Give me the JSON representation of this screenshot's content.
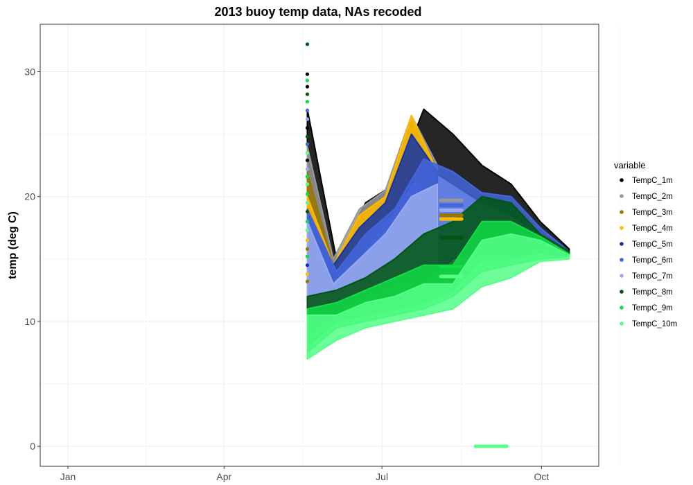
{
  "chart_data": {
    "type": "scatter",
    "title": "2013 buoy temp data, NAs recoded",
    "xlabel": "",
    "ylabel": "temp (deg C)",
    "x_tick_labels": [
      "Jan",
      "Apr",
      "Jul",
      "Oct"
    ],
    "x_ticks": [
      "2013-01-01",
      "2013-04-01",
      "2013-07-01",
      "2013-10-01"
    ],
    "xlim": [
      "2012-12-16",
      "2013-11-03"
    ],
    "y_tick_labels": [
      "0",
      "10",
      "20",
      "30"
    ],
    "y_ticks": [
      0,
      10,
      20,
      30
    ],
    "ylim": [
      -1.6,
      33.8
    ],
    "grid": true,
    "legend_title": "variable",
    "legend_position": "right",
    "series": [
      {
        "name": "TempC_1m",
        "color": "#000000"
      },
      {
        "name": "TempC_2m",
        "color": "#999999"
      },
      {
        "name": "TempC_3m",
        "color": "#997700"
      },
      {
        "name": "TempC_4m",
        "color": "#FFBB00"
      },
      {
        "name": "TempC_5m",
        "color": "#1133AA"
      },
      {
        "name": "TempC_6m",
        "color": "#4466DD"
      },
      {
        "name": "TempC_7m",
        "color": "#99AAEE"
      },
      {
        "name": "TempC_8m",
        "color": "#005511"
      },
      {
        "name": "TempC_9m",
        "color": "#11DD44"
      },
      {
        "name": "TempC_10m",
        "color": "#55FF88"
      }
    ],
    "ribbons": [
      {
        "series": "TempC_1m",
        "start": "2013-05-19",
        "end": "2013-10-17",
        "lower": [
          9,
          14,
          16,
          19,
          22.5,
          21,
          19.5,
          18.5,
          17,
          15.6
        ],
        "upper": [
          27,
          15,
          19.5,
          21,
          27,
          25,
          22.5,
          21,
          18,
          15.8
        ]
      },
      {
        "series": "TempC_2m",
        "start": "2013-05-19",
        "end": "2013-08-02",
        "lower": [
          9,
          14,
          16,
          19,
          22.5,
          20.5
        ],
        "upper": [
          24,
          15,
          19,
          20.5,
          26.5,
          22.5
        ]
      },
      {
        "series": "TempC_3m",
        "start": "2013-05-19",
        "end": "2013-08-02",
        "lower": [
          9,
          13.5,
          15.5,
          18.5,
          22,
          20
        ],
        "upper": [
          22,
          14.5,
          18.5,
          20,
          26,
          22
        ]
      },
      {
        "series": "TempC_4m",
        "start": "2013-05-19",
        "end": "2013-08-02",
        "lower": [
          9,
          13,
          15,
          18,
          21.5,
          19.5
        ],
        "upper": [
          20,
          14.5,
          18.5,
          20,
          26.5,
          22
        ]
      },
      {
        "series": "TempC_5m",
        "start": "2013-05-19",
        "end": "2013-08-02",
        "lower": [
          9,
          12,
          13,
          14,
          14.5,
          16
        ],
        "upper": [
          19,
          14.5,
          17.5,
          19.5,
          25,
          22
        ]
      },
      {
        "series": "TempC_6m",
        "start": "2013-05-19",
        "end": "2013-10-17",
        "lower": [
          9,
          11,
          12,
          13,
          13,
          15,
          15.5,
          15.5,
          15.5,
          15.2
        ],
        "upper": [
          19,
          14,
          17,
          19,
          23,
          22,
          20.3,
          20,
          17.5,
          15.6
        ]
      },
      {
        "series": "TempC_7m",
        "start": "2013-05-19",
        "end": "2013-08-02",
        "lower": [
          8.5,
          10.5,
          11,
          12,
          12.5,
          14
        ],
        "upper": [
          18,
          13,
          15,
          17,
          20,
          21
        ]
      },
      {
        "series": "TempC_8m",
        "start": "2013-05-19",
        "end": "2013-10-17",
        "lower": [
          8,
          10,
          10.5,
          11,
          11.5,
          12.5,
          15,
          15,
          15.5,
          15.2
        ],
        "upper": [
          12,
          12.5,
          13.5,
          15,
          17,
          18,
          20,
          19.5,
          17,
          15.6
        ]
      },
      {
        "series": "TempC_9m",
        "start": "2013-05-19",
        "end": "2013-10-17",
        "lower": [
          7.5,
          9.5,
          10,
          10.5,
          11,
          12,
          14,
          14.5,
          15,
          15.2
        ],
        "upper": [
          11,
          11.5,
          12.5,
          13.5,
          14.5,
          14.5,
          18,
          18,
          16.8,
          15.4
        ]
      },
      {
        "series": "TempC_10m",
        "start": "2013-05-19",
        "end": "2013-10-17",
        "lower": [
          7,
          8.5,
          9.5,
          10,
          10.5,
          11,
          12.8,
          13.5,
          14.8,
          15
        ],
        "upper": [
          10.5,
          10.5,
          11.5,
          12,
          13,
          13,
          16.5,
          17,
          16.5,
          15.3
        ]
      }
    ],
    "spike": {
      "x": "2013-05-19",
      "points": [
        {
          "series": "TempC_8m",
          "y": 32.2
        },
        {
          "series": "TempC_1m",
          "y": 29.8
        },
        {
          "series": "TempC_9m",
          "y": 29.3
        },
        {
          "series": "TempC_1m",
          "y": 28.8
        },
        {
          "series": "TempC_8m",
          "y": 28.2
        },
        {
          "series": "TempC_9m",
          "y": 27.6
        },
        {
          "series": "TempC_6m",
          "y": 26.9
        },
        {
          "series": "TempC_7m",
          "y": 26.2
        },
        {
          "series": "TempC_1m",
          "y": 25.5
        },
        {
          "series": "TempC_8m",
          "y": 24.8
        },
        {
          "series": "TempC_6m",
          "y": 24.2
        },
        {
          "series": "TempC_10m",
          "y": 23.5
        },
        {
          "series": "TempC_1m",
          "y": 22.9
        },
        {
          "series": "TempC_7m",
          "y": 22.2
        },
        {
          "series": "TempC_9m",
          "y": 21.6
        },
        {
          "series": "TempC_10m",
          "y": 21.0
        },
        {
          "series": "TempC_9m",
          "y": 20.2
        },
        {
          "series": "TempC_10m",
          "y": 19.5
        },
        {
          "series": "TempC_8m",
          "y": 18.8
        },
        {
          "series": "TempC_9m",
          "y": 18.0
        },
        {
          "series": "TempC_10m",
          "y": 17.3
        },
        {
          "series": "TempC_4m",
          "y": 16.5
        },
        {
          "series": "TempC_3m",
          "y": 15.8
        },
        {
          "series": "TempC_9m",
          "y": 15.2
        },
        {
          "series": "TempC_5m",
          "y": 14.5
        },
        {
          "series": "TempC_4m",
          "y": 13.8
        },
        {
          "series": "TempC_3m",
          "y": 13.2
        }
      ]
    },
    "flat_segments": [
      {
        "series": "TempC_2m",
        "start": "2013-08-04",
        "end": "2013-08-16",
        "y": 19.7
      },
      {
        "series": "TempC_6m",
        "start": "2013-08-04",
        "end": "2013-08-16",
        "y": 19.3
      },
      {
        "series": "TempC_7m",
        "start": "2013-08-04",
        "end": "2013-08-16",
        "y": 18.9
      },
      {
        "series": "TempC_3m",
        "start": "2013-08-04",
        "end": "2013-08-16",
        "y": 18.5
      },
      {
        "series": "TempC_4m",
        "start": "2013-08-04",
        "end": "2013-08-16",
        "y": 18.2
      },
      {
        "series": "TempC_8m",
        "start": "2013-08-04",
        "end": "2013-08-16",
        "y": 16.7
      },
      {
        "series": "TempC_9m",
        "start": "2013-08-04",
        "end": "2013-08-16",
        "y": 14.4
      },
      {
        "series": "TempC_10m",
        "start": "2013-08-04",
        "end": "2013-08-16",
        "y": 13.6
      },
      {
        "series": "TempC_10m",
        "start": "2013-08-24",
        "end": "2013-09-11",
        "y": 0
      }
    ]
  }
}
